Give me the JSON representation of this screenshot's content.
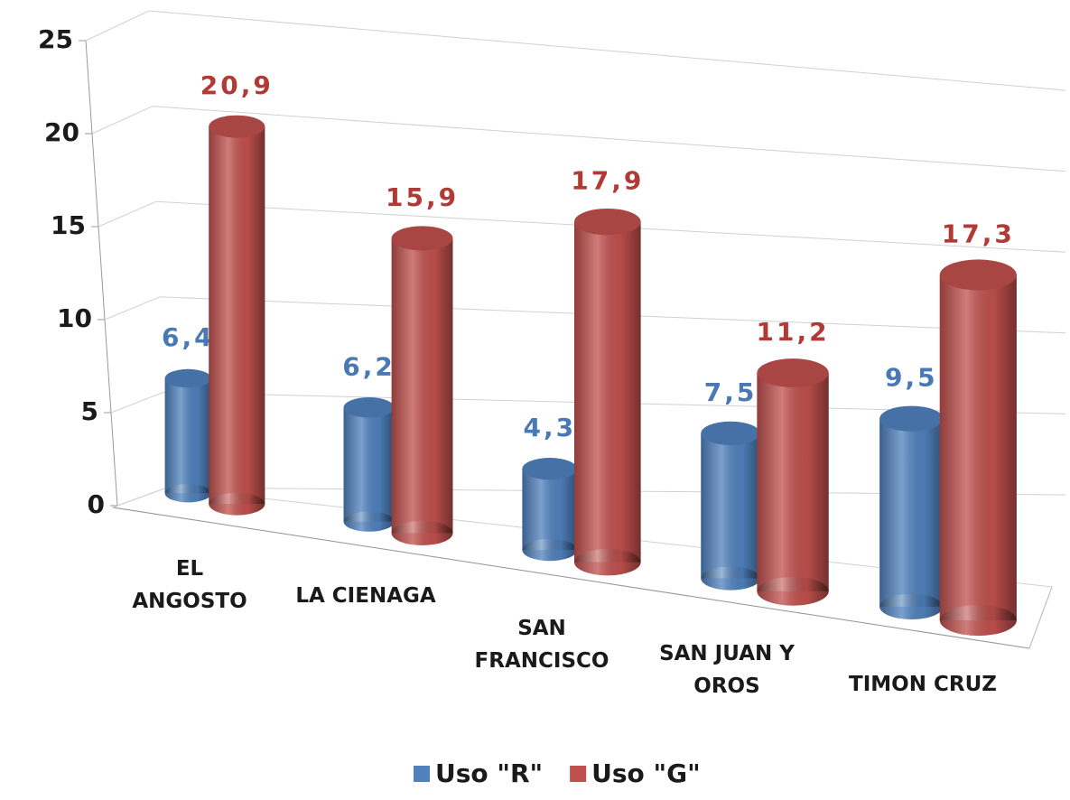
{
  "chart_data": {
    "type": "bar3d",
    "categories": [
      "EL ANGOSTO",
      "LA CIENAGA",
      "SAN FRANCISCO",
      "SAN JUAN Y OROS",
      "TIMON CRUZ"
    ],
    "series": [
      {
        "name": "Uso \"R\"",
        "color": "#4f81bd",
        "label_color": "#4a78b4",
        "values": [
          6.4,
          6.2,
          4.3,
          7.5,
          9.5
        ],
        "value_labels": [
          "6,4",
          "6,2",
          "4,3",
          "7,5",
          "9,5"
        ]
      },
      {
        "name": "Uso \"G\"",
        "color": "#c0504d",
        "label_color": "#b23a36",
        "values": [
          20.9,
          15.9,
          17.9,
          11.2,
          17.3
        ],
        "value_labels": [
          "20,9",
          "15,9",
          "17,9",
          "11,2",
          "17,3"
        ]
      }
    ],
    "ylim": [
      0,
      25
    ],
    "yticks": [
      0,
      5,
      10,
      15,
      20,
      25
    ],
    "grid": true,
    "legend": "bottom"
  }
}
